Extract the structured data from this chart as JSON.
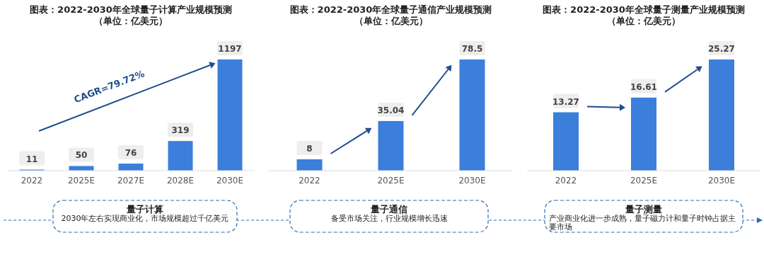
{
  "chart_data": [
    {
      "type": "bar",
      "title": "图表：2022-2030年全球量子计算产业规模预测",
      "subtitle": "（单位：亿美元）",
      "categories": [
        "2022",
        "2025E",
        "2027E",
        "2028E",
        "2030E"
      ],
      "values": [
        11,
        50,
        76,
        319,
        1197
      ],
      "color": "#3b7fdb",
      "data_labels": true,
      "annotations": [
        "CAGR=79.72%",
        "量子计算",
        "2030年左右实现商业化，市场规模超过千亿美元"
      ]
    },
    {
      "type": "bar",
      "title": "图表：2022-2030年全球量子通信产业规模预测",
      "subtitle": "（单位：亿美元）",
      "categories": [
        "2022",
        "2025E",
        "2030E"
      ],
      "values": [
        8,
        35.04,
        78.5
      ],
      "color": "#3b7fdb",
      "data_labels": true,
      "annotations": [
        "量子通信",
        "备受市场关注，行业规模增长迅速"
      ]
    },
    {
      "type": "bar",
      "title": "图表：2022-2030年全球量子测量产业规模预测",
      "subtitle": "（单位：亿美元）",
      "categories": [
        "2022",
        "2025E",
        "2030E"
      ],
      "values": [
        13.27,
        16.61,
        25.27
      ],
      "color": "#3b7fdb",
      "data_labels": true,
      "annotations": [
        "量子测量",
        "产业商业化进一步成熟，量子磁力计和量子时钟占据主要市场"
      ]
    }
  ]
}
